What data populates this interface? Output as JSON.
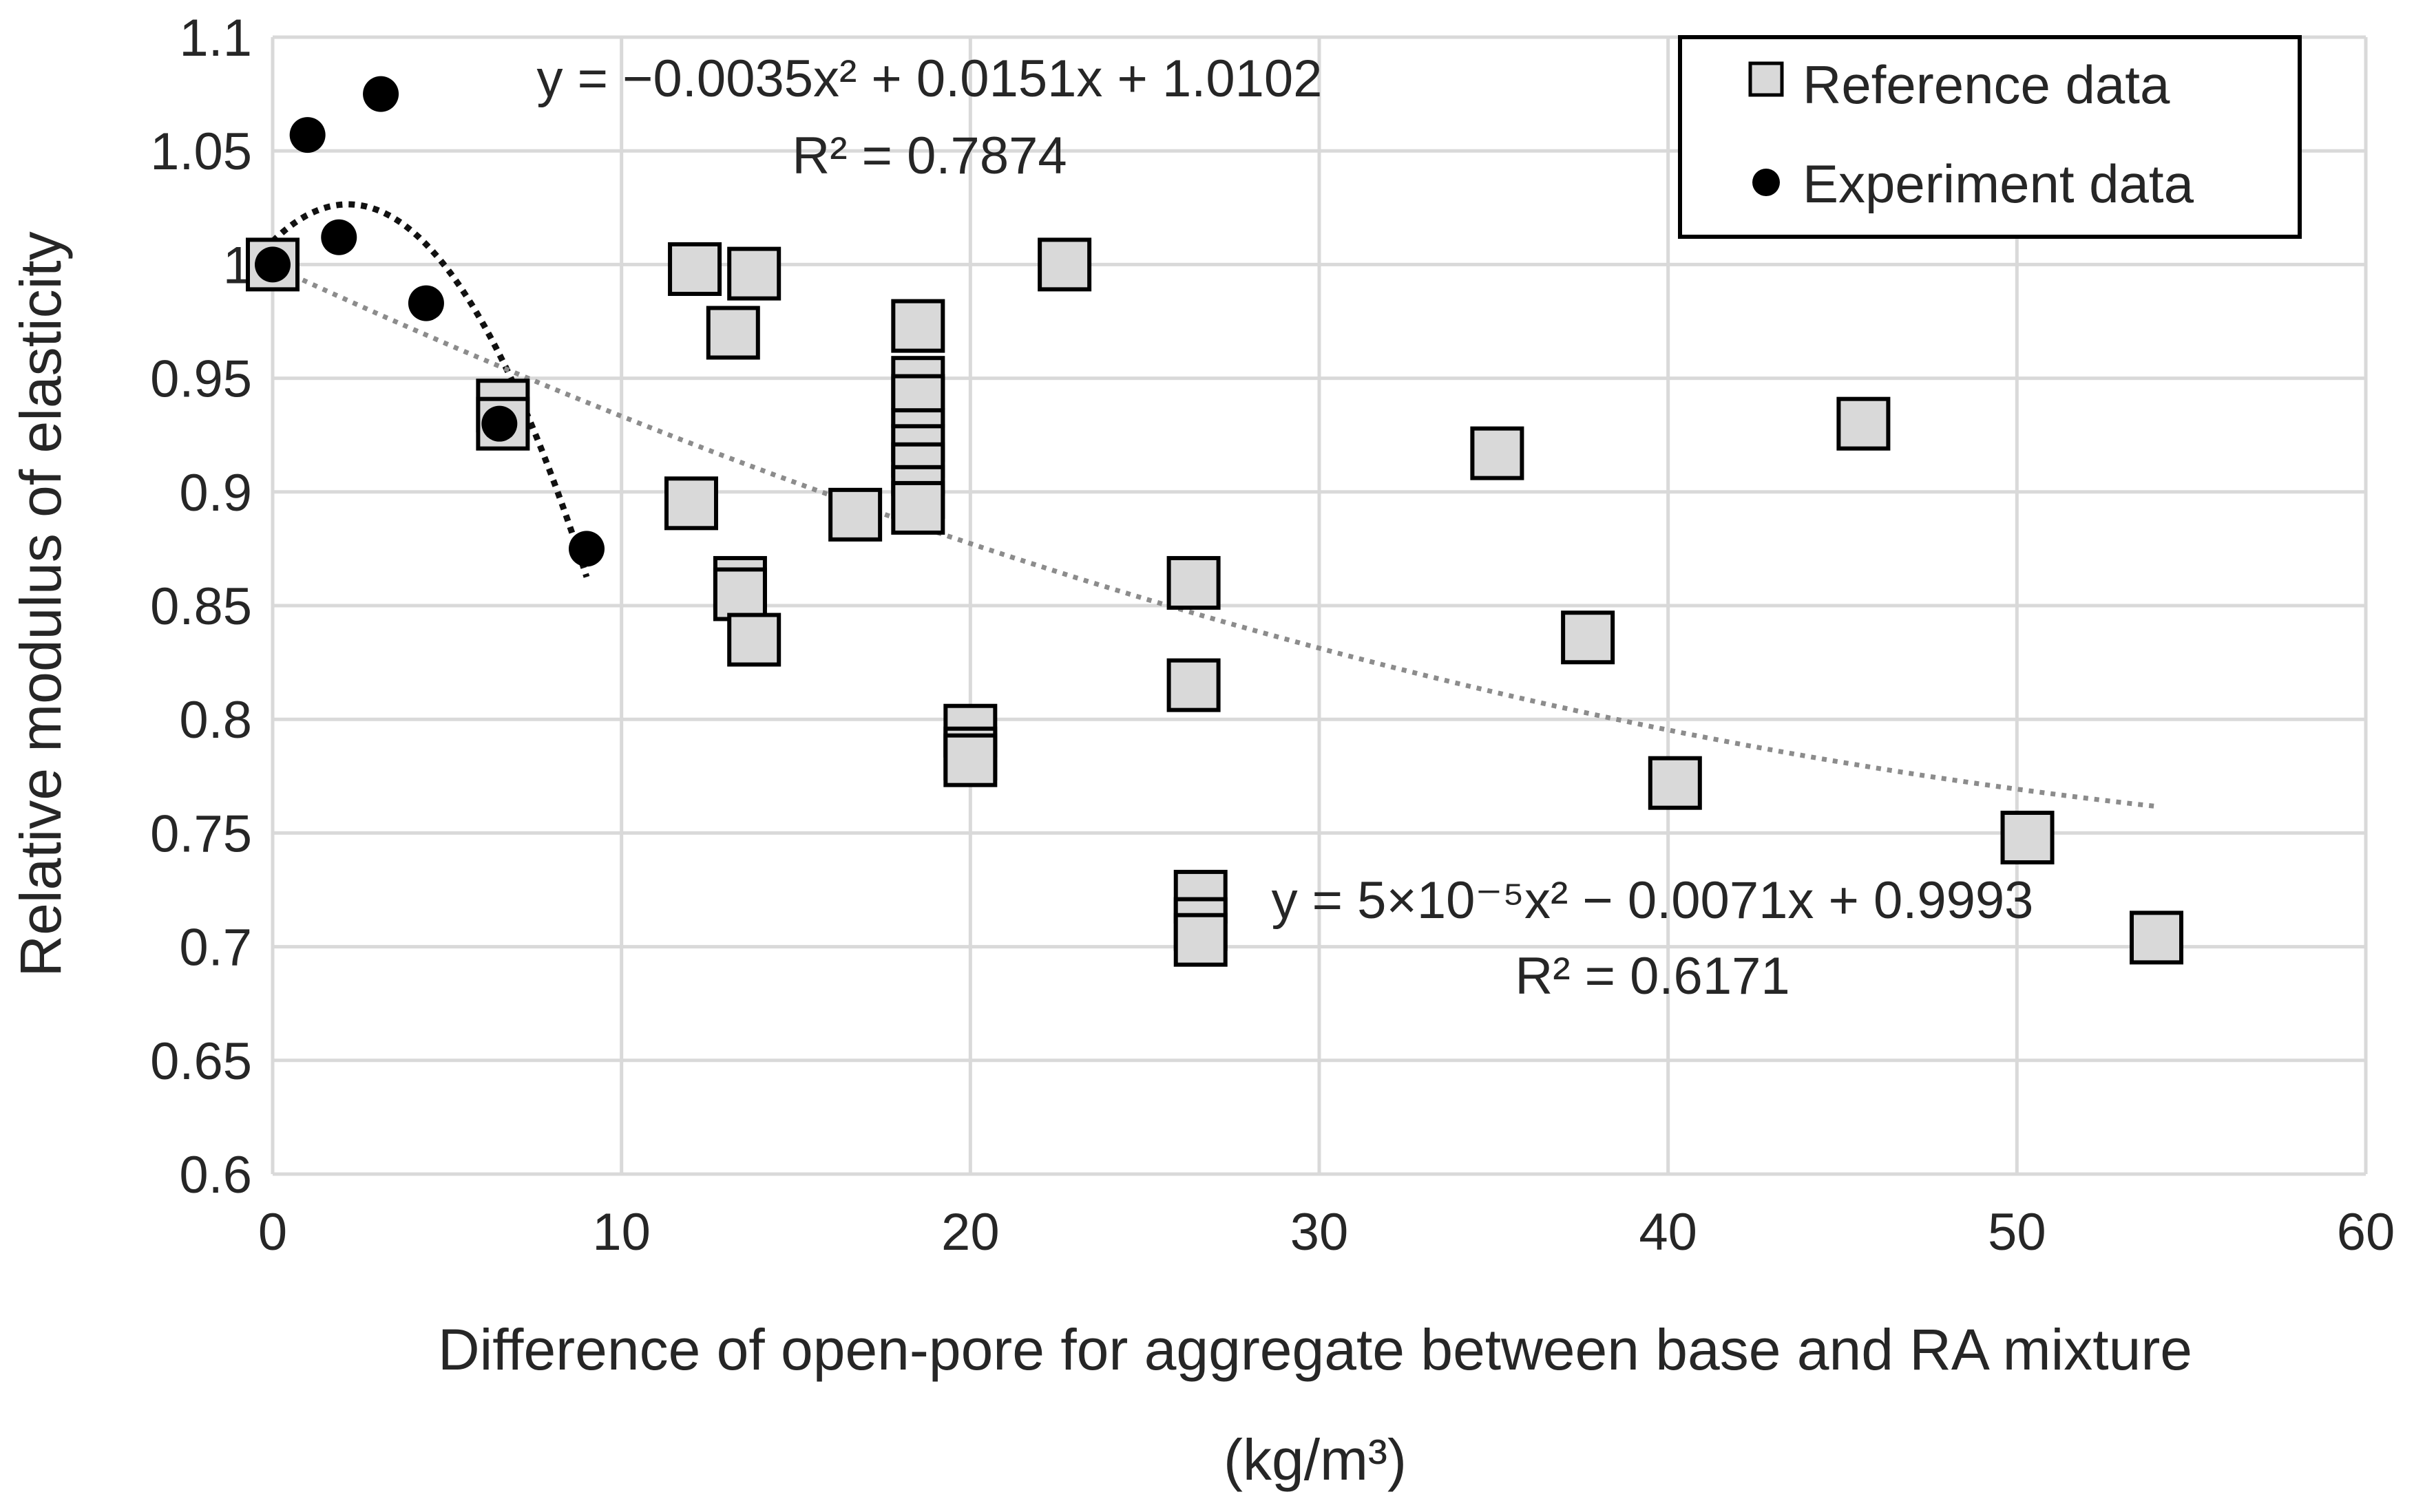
{
  "chart_data": {
    "type": "scatter",
    "title": "",
    "xlabel_line1": "Difference of open-pore for aggregate between base and RA mixture",
    "xlabel_line2": "(kg/m³)",
    "ylabel": "Relative modulus of elasticity",
    "xlim": [
      0,
      60
    ],
    "ylim": [
      0.6,
      1.1
    ],
    "x_ticks": [
      0,
      10,
      20,
      30,
      40,
      50,
      60
    ],
    "y_ticks": [
      0.6,
      0.65,
      0.7,
      0.75,
      0.8,
      0.85,
      0.9,
      0.95,
      1,
      1.05,
      1.1
    ],
    "y_tick_labels": [
      "0.6",
      "0.65",
      "0.7",
      "0.75",
      "0.8",
      "0.85",
      "0.9",
      "0.95",
      "1",
      "1.05",
      "1.1"
    ],
    "grid": true,
    "legend_position": "top-right",
    "series": [
      {
        "name": "Reference data",
        "marker": "square",
        "color": "#d9d9d9",
        "edge_color": "#000000",
        "points": [
          [
            0,
            1.0
          ],
          [
            6.6,
            0.938
          ],
          [
            6.6,
            0.93
          ],
          [
            12.1,
            0.998
          ],
          [
            12.0,
            0.895
          ],
          [
            13.2,
            0.97
          ],
          [
            13.4,
            0.86
          ],
          [
            13.4,
            0.855
          ],
          [
            13.8,
            0.996
          ],
          [
            13.8,
            0.835
          ],
          [
            16.7,
            0.89
          ],
          [
            18.5,
            0.973
          ],
          [
            18.5,
            0.948
          ],
          [
            18.5,
            0.94
          ],
          [
            18.5,
            0.925
          ],
          [
            18.5,
            0.918
          ],
          [
            18.5,
            0.91
          ],
          [
            18.5,
            0.9
          ],
          [
            18.5,
            0.893
          ],
          [
            20.0,
            0.795
          ],
          [
            20.0,
            0.785
          ],
          [
            20.0,
            0.782
          ],
          [
            22.7,
            1.0
          ],
          [
            26.4,
            0.86
          ],
          [
            26.4,
            0.815
          ],
          [
            26.6,
            0.722
          ],
          [
            26.6,
            0.71
          ],
          [
            26.6,
            0.703
          ],
          [
            35.1,
            0.917
          ],
          [
            37.7,
            0.836
          ],
          [
            40.2,
            0.772
          ],
          [
            45.6,
            0.93
          ],
          [
            50.3,
            0.748
          ],
          [
            54.0,
            0.704
          ]
        ]
      },
      {
        "name": "Experiment data",
        "marker": "circle",
        "color": "#000000",
        "points": [
          [
            0,
            1.0
          ],
          [
            1.0,
            1.057
          ],
          [
            1.9,
            1.012
          ],
          [
            3.1,
            1.075
          ],
          [
            4.4,
            0.983
          ],
          [
            6.5,
            0.93
          ],
          [
            9.0,
            0.875
          ]
        ]
      }
    ],
    "trendlines": [
      {
        "series": "Experiment data",
        "a": -0.0035,
        "b": 0.0151,
        "c": 1.0102,
        "x_range": [
          0,
          9.0
        ],
        "style": "dotted-dark",
        "equation_label": "y = −0.0035x² + 0.0151x + 1.0102",
        "r2_label": "R² = 0.7874"
      },
      {
        "series": "Reference data",
        "a": 5e-05,
        "b": -0.0071,
        "c": 0.9993,
        "x_range": [
          0,
          54.0
        ],
        "style": "dotted-grey",
        "equation_label": "y = 5×10⁻⁵x² − 0.0071x + 0.9993",
        "r2_label": "R² = 0.6171"
      }
    ]
  }
}
